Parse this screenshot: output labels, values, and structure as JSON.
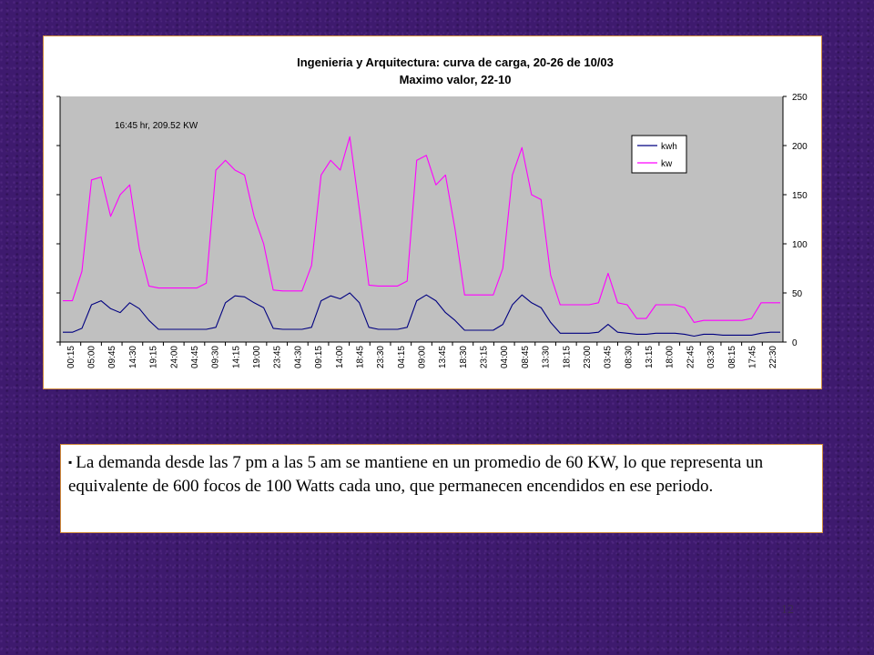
{
  "slide": {
    "note_bullet": "▪",
    "note_text": "La demanda desde las 7 pm a las 5 am se mantiene en un promedio de 60 KW, lo que representa un equivalente de 600 focos de 100 Watts cada uno, que permanecen encendidos en ese periodo.",
    "page_number": "12"
  },
  "chart_data": {
    "type": "line",
    "title": "Ingenieria y Arquitectura: curva de carga, 20-26 de 10/03",
    "subtitle": "Maximo valor, 22-10",
    "annotation": "16:45 hr, 209.52 KW",
    "ylim": [
      0,
      250
    ],
    "yticks": [
      "0",
      "50",
      "100",
      "150",
      "200",
      "250"
    ],
    "y2_axis": "right",
    "grid": false,
    "plot_background": "#c0c0c0",
    "legend_position": "top-right",
    "x_tick_labels": [
      "00:15",
      "05:00",
      "09:45",
      "14:30",
      "19:15",
      "24:00",
      "04:45",
      "09:30",
      "14:15",
      "19:00",
      "23:45",
      "04:30",
      "09:15",
      "14:00",
      "18:45",
      "23:30",
      "04:15",
      "09:00",
      "13:45",
      "18:30",
      "23:15",
      "04:00",
      "08:45",
      "13:30",
      "18:15",
      "23:00",
      "03:45",
      "08:30",
      "13:15",
      "18:00",
      "22:45",
      "03:30",
      "08:15",
      "17:45",
      "22:30"
    ],
    "series": [
      {
        "name": "kwh",
        "color": "#000080",
        "values": [
          10,
          10,
          14,
          38,
          42,
          34,
          30,
          40,
          34,
          22,
          13,
          13,
          13,
          13,
          13,
          13,
          15,
          40,
          47,
          46,
          40,
          35,
          14,
          13,
          13,
          13,
          15,
          42,
          47,
          44,
          50,
          40,
          15,
          13,
          13,
          13,
          15,
          42,
          48,
          42,
          30,
          22,
          12,
          12,
          12,
          12,
          18,
          38,
          48,
          40,
          35,
          20,
          9,
          9,
          9,
          9,
          10,
          18,
          10,
          9,
          8,
          8,
          9,
          9,
          9,
          8,
          6,
          8,
          8,
          7,
          7,
          7,
          7,
          9,
          10,
          10
        ]
      },
      {
        "name": "kw",
        "color": "#ff00ff",
        "values": [
          42,
          42,
          72,
          165,
          168,
          128,
          150,
          160,
          95,
          57,
          55,
          55,
          55,
          55,
          55,
          60,
          175,
          185,
          175,
          170,
          128,
          100,
          53,
          52,
          52,
          52,
          78,
          170,
          185,
          175,
          209,
          135,
          58,
          57,
          57,
          57,
          62,
          185,
          190,
          160,
          170,
          115,
          48,
          48,
          48,
          48,
          75,
          170,
          198,
          150,
          145,
          68,
          38,
          38,
          38,
          38,
          40,
          70,
          40,
          38,
          24,
          24,
          38,
          38,
          38,
          35,
          20,
          22,
          22,
          22,
          22,
          22,
          24,
          40,
          40,
          40
        ]
      }
    ]
  }
}
